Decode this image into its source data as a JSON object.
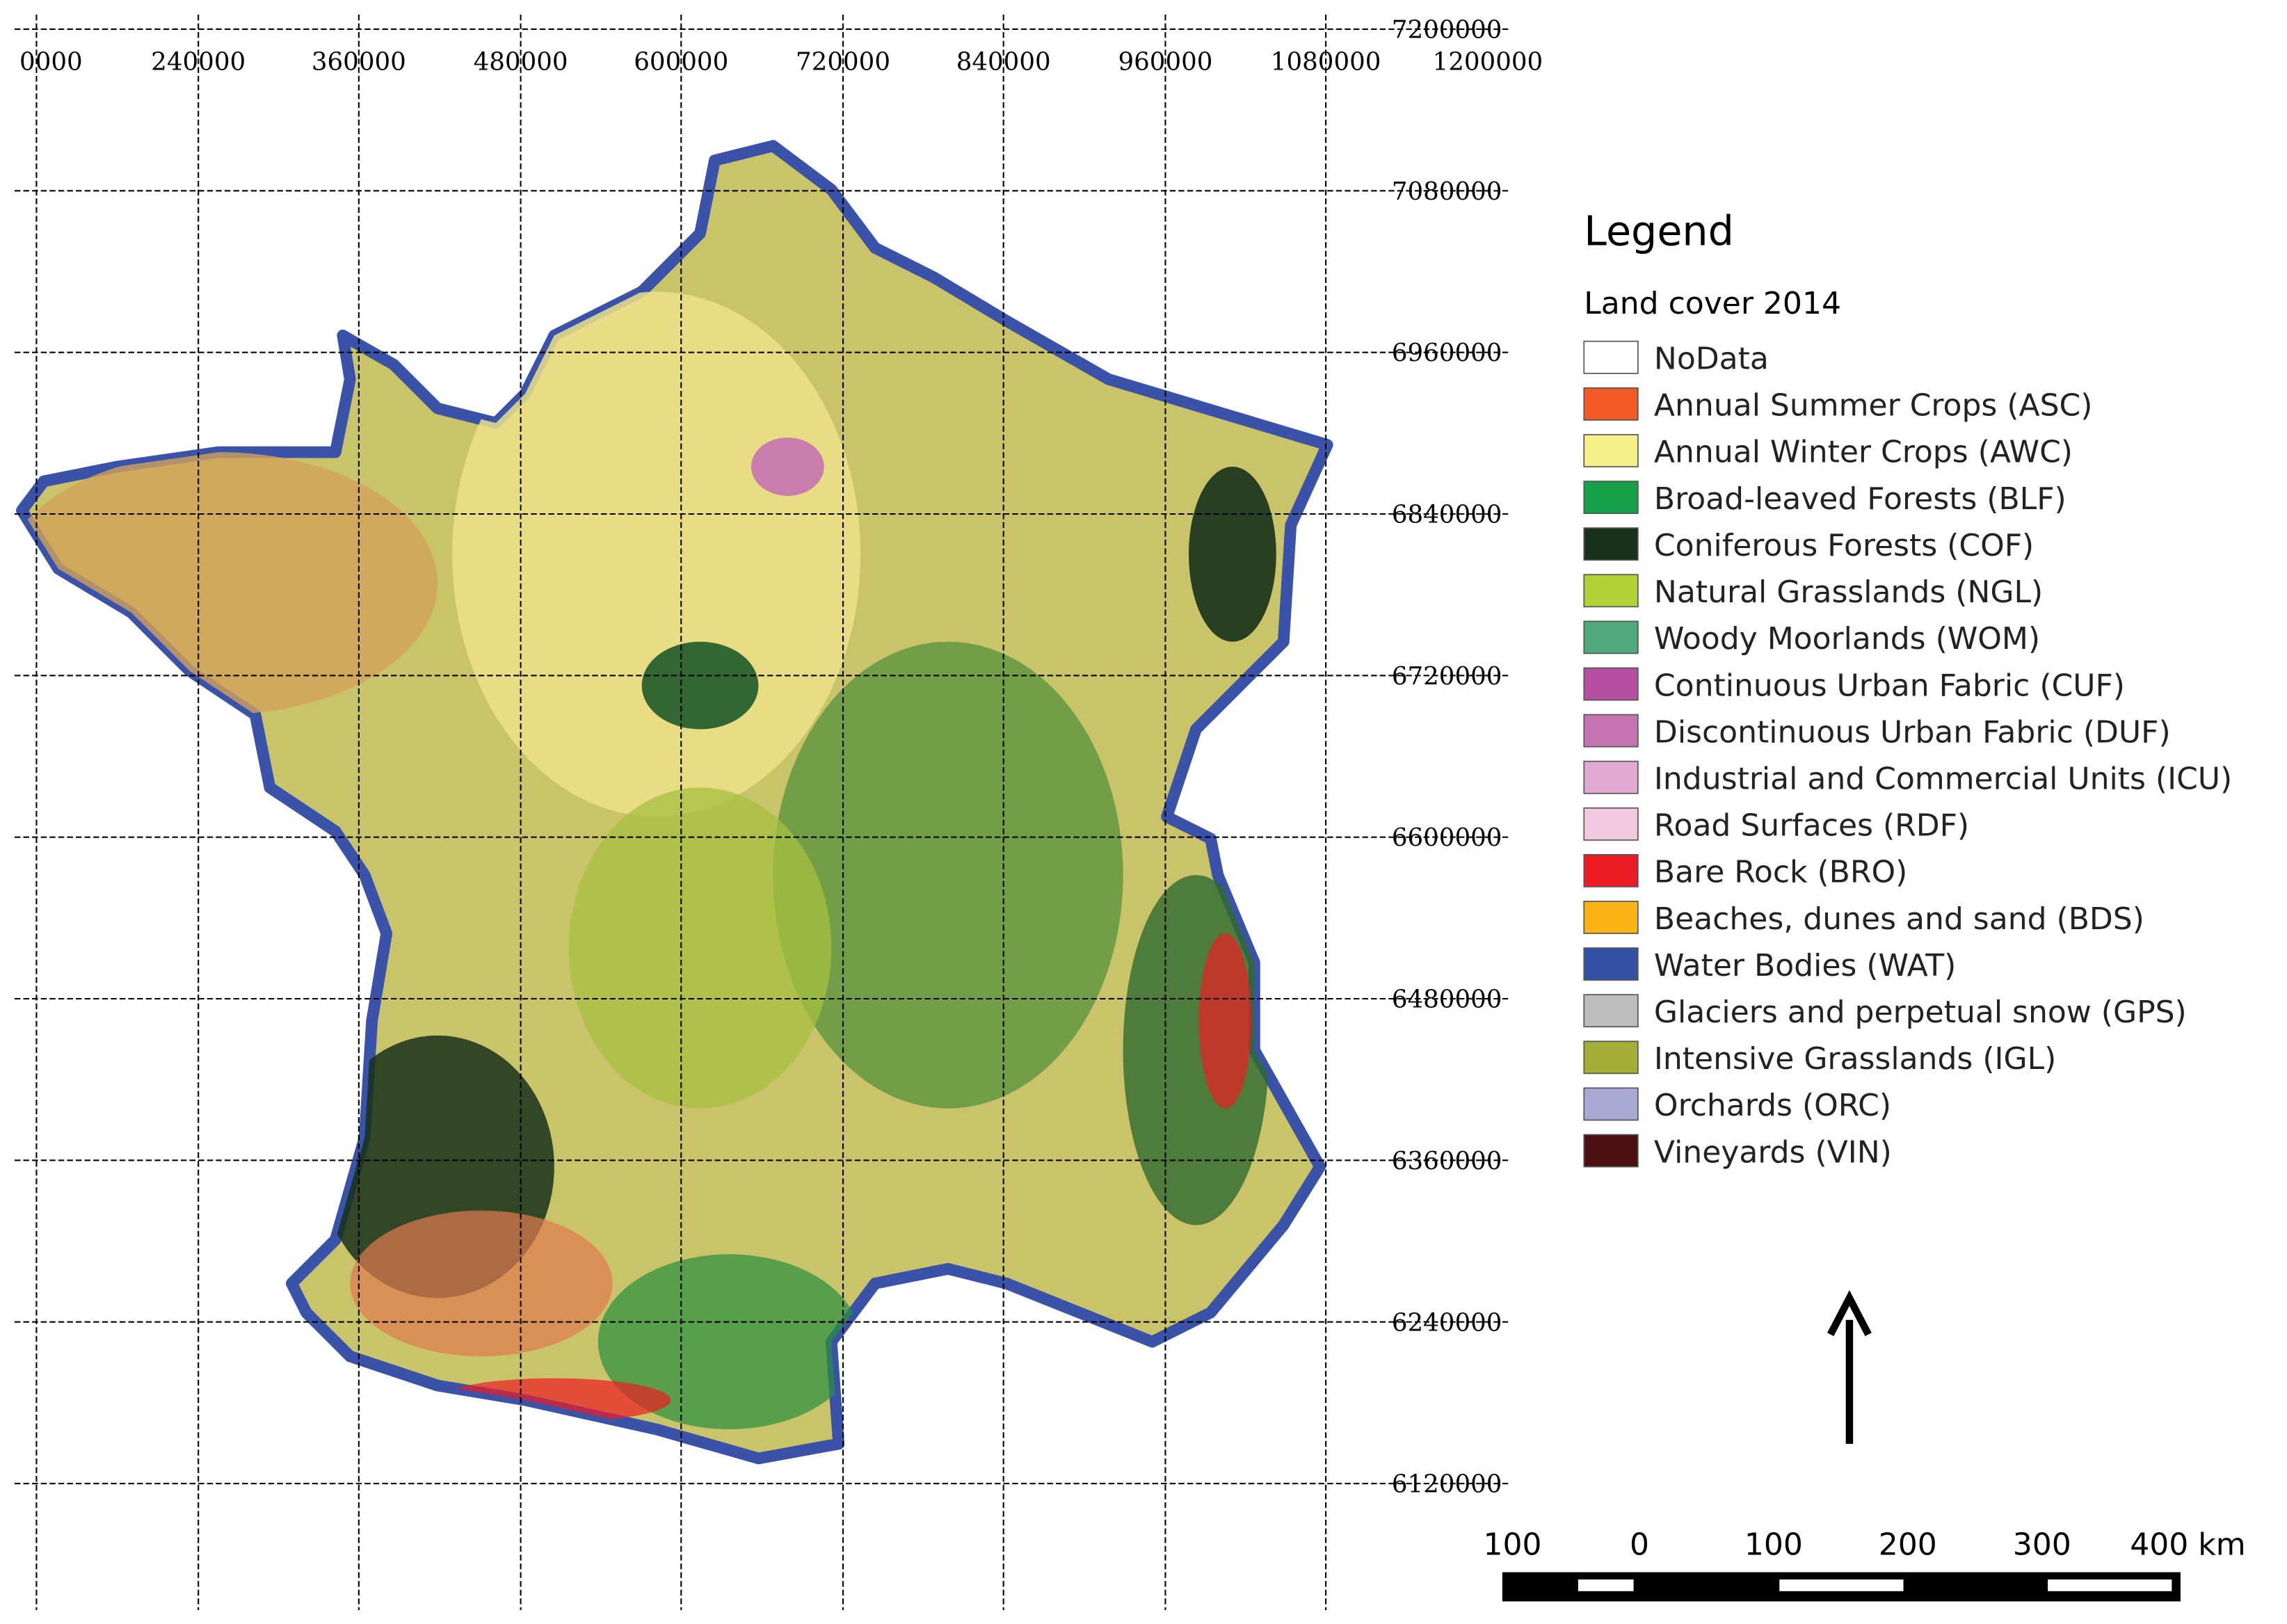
{
  "map": {
    "x_grid_labels": [
      "0000",
      "240000",
      "360000",
      "480000",
      "600000",
      "720000",
      "840000",
      "960000",
      "1080000",
      "1200000"
    ],
    "y_grid_labels": [
      "7200000",
      "7080000",
      "6960000",
      "6840000",
      "6720000",
      "6600000",
      "6480000",
      "6360000",
      "6240000",
      "6120000"
    ],
    "legend": {
      "title": "Legend",
      "subtitle": "Land cover 2014",
      "items": [
        {
          "label": "NoData",
          "color": "#ffffff"
        },
        {
          "label": "Annual Summer Crops (ASC)",
          "color": "#f15a24"
        },
        {
          "label": "Annual Winter Crops (AWC)",
          "color": "#f7ef8a"
        },
        {
          "label": "Broad-leaved Forests (BLF)",
          "color": "#16a04a"
        },
        {
          "label": "Coniferous Forests (COF)",
          "color": "#17311a"
        },
        {
          "label": "Natural Grasslands (NGL)",
          "color": "#b0d236"
        },
        {
          "label": "Woody Moorlands (WOM)",
          "color": "#4ea97a"
        },
        {
          "label": "Continuous Urban Fabric (CUF)",
          "color": "#b64ea2"
        },
        {
          "label": "Discontinuous Urban Fabric (DUF)",
          "color": "#c673b2"
        },
        {
          "label": "Industrial and Commercial Units (ICU)",
          "color": "#e2a9d2"
        },
        {
          "label": "Road Surfaces (RDF)",
          "color": "#f2c9e0"
        },
        {
          "label": "Bare Rock (BRO)",
          "color": "#ed1c24"
        },
        {
          "label": "Beaches, dunes and sand (BDS)",
          "color": "#fbb316"
        },
        {
          "label": "Water Bodies (WAT)",
          "color": "#3450a5"
        },
        {
          "label": "Glaciers and perpetual snow (GPS)",
          "color": "#bdbdbd"
        },
        {
          "label": "Intensive Grasslands (IGL)",
          "color": "#a5ae34"
        },
        {
          "label": "Orchards (ORC)",
          "color": "#a9a8d3"
        },
        {
          "label": "Vineyards (VIN)",
          "color": "#4b0f10"
        }
      ]
    },
    "scale_bar_labels": [
      "100",
      "0",
      "100",
      "200",
      "300",
      "400 km"
    ]
  }
}
